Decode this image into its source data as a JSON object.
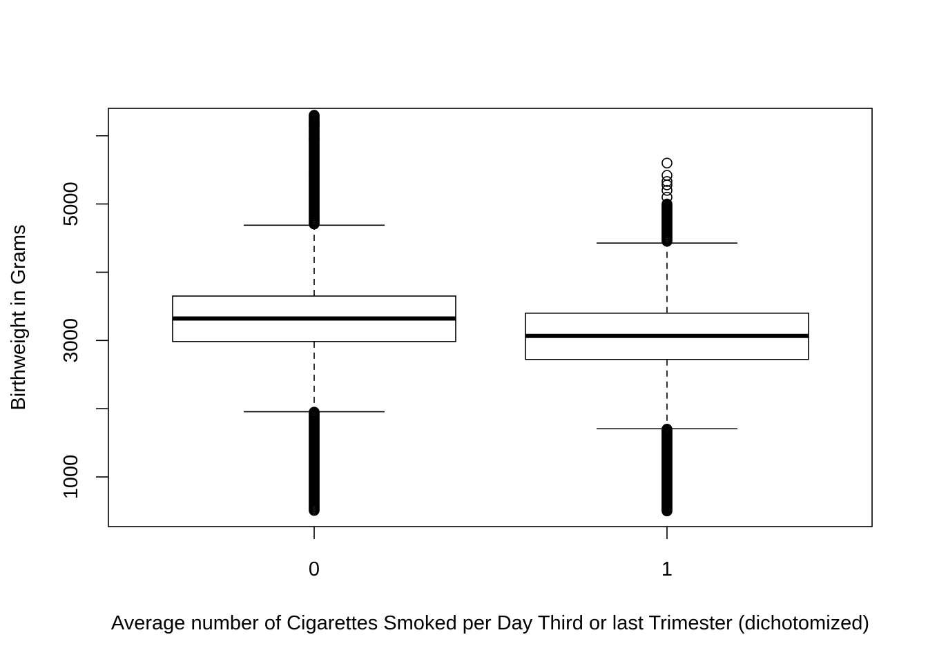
{
  "chart_data": {
    "type": "boxplot",
    "title": "",
    "xlabel": "Average number of Cigarettes Smoked per Day Third or last Trimester (dichotomized)",
    "ylabel": "Birthweight in Grams",
    "categories": [
      "0",
      "1"
    ],
    "y_ticks": [
      1000,
      2000,
      3000,
      4000,
      5000,
      6000
    ],
    "y_tick_labels": [
      "1000",
      "",
      "3000",
      "",
      "5000",
      ""
    ],
    "ylim": [
      272,
      6402
    ],
    "grid": false,
    "legend": "none",
    "boxes": [
      {
        "category": "0",
        "whisker_low": 1956,
        "q1": 2984,
        "median": 3322,
        "q3": 3651,
        "whisker_high": 4689,
        "outliers_low_range": [
          500,
          1950
        ],
        "outliers_high_range": [
          4700,
          6300
        ],
        "outliers_high_sparse": [
          5950,
          6050,
          6150,
          6200,
          6300
        ]
      },
      {
        "category": "1",
        "whisker_low": 1706,
        "q1": 2722,
        "median": 3066,
        "q3": 3400,
        "whisker_high": 4428,
        "outliers_low_range": [
          500,
          1700
        ],
        "outliers_high_range": [
          4440,
          5000
        ],
        "outliers_high_sparse": [
          5100,
          5200,
          5280,
          5330,
          5420,
          5600
        ]
      }
    ]
  }
}
